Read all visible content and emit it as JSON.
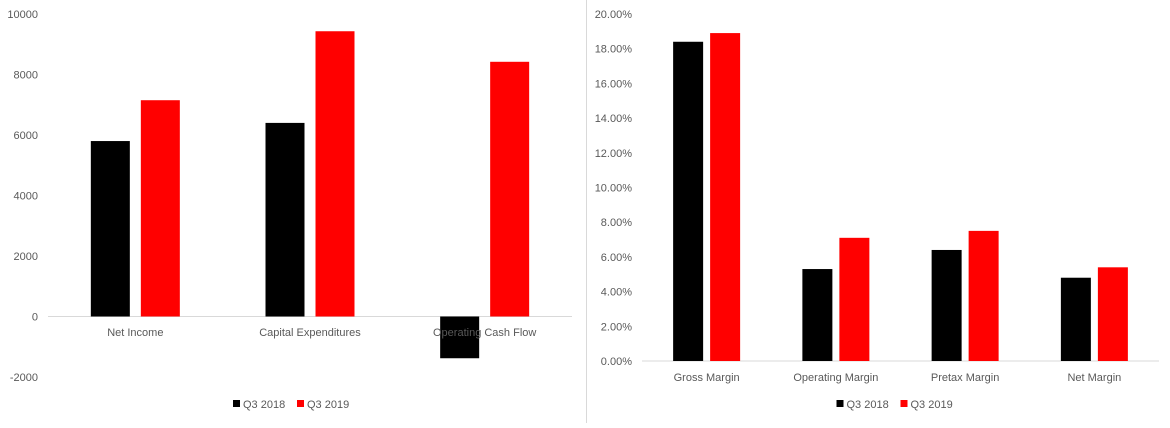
{
  "chart_data": [
    {
      "type": "bar",
      "title": "",
      "xlabel": "",
      "ylabel": "",
      "categories": [
        "Net Income",
        "Capital Expenditures",
        "Operating Cash Flow"
      ],
      "series": [
        {
          "name": "Q3 2018",
          "color": "#000000",
          "values": [
            5800,
            6400,
            -1380
          ]
        },
        {
          "name": "Q3 2019",
          "color": "#ff0000",
          "values": [
            7150,
            9430,
            8420
          ]
        }
      ],
      "ylim": [
        -2000,
        10000
      ],
      "yticks": [
        -2000,
        0,
        2000,
        4000,
        6000,
        8000,
        10000
      ],
      "ytick_labels": [
        "-2000",
        "0",
        "2000",
        "4000",
        "6000",
        "8000",
        "10000"
      ],
      "grid": false,
      "legend": "bottom-center"
    },
    {
      "type": "bar",
      "title": "",
      "xlabel": "",
      "ylabel": "",
      "categories": [
        "Gross Margin",
        "Operating Margin",
        "Pretax Margin",
        "Net Margin"
      ],
      "series": [
        {
          "name": "Q3 2018",
          "color": "#000000",
          "values": [
            18.4,
            5.3,
            6.4,
            4.8
          ]
        },
        {
          "name": "Q3 2019",
          "color": "#ff0000",
          "values": [
            18.9,
            7.1,
            7.5,
            5.4
          ]
        }
      ],
      "ylim": [
        0,
        20
      ],
      "yticks": [
        0,
        2,
        4,
        6,
        8,
        10,
        12,
        14,
        16,
        18,
        20
      ],
      "ytick_labels": [
        "0.00%",
        "2.00%",
        "4.00%",
        "6.00%",
        "8.00%",
        "10.00%",
        "12.00%",
        "14.00%",
        "16.00%",
        "18.00%",
        "20.00%"
      ],
      "grid": false,
      "legend": "bottom-center"
    }
  ]
}
